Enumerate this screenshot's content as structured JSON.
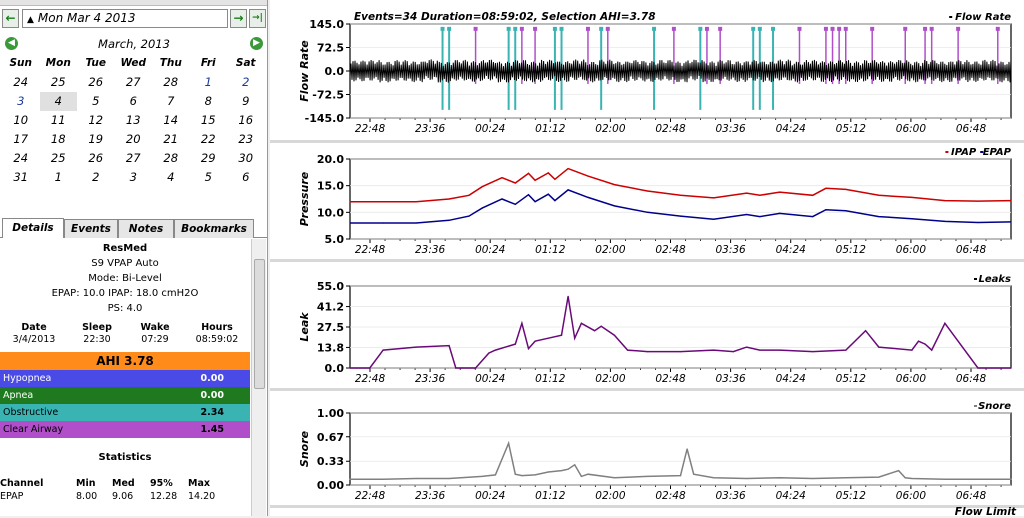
{
  "date_nav": {
    "prev": "←",
    "date": "Mon Mar 4 2013",
    "next": "→",
    "today": "→|"
  },
  "calendar": {
    "month_label": "March, 2013",
    "weekdays": [
      "Sun",
      "Mon",
      "Tue",
      "Wed",
      "Thu",
      "Fri",
      "Sat"
    ],
    "weeks": [
      [
        "24",
        "25",
        "26",
        "27",
        "28",
        "1",
        "2"
      ],
      [
        "3",
        "4",
        "5",
        "6",
        "7",
        "8",
        "9"
      ],
      [
        "10",
        "11",
        "12",
        "13",
        "14",
        "15",
        "16"
      ],
      [
        "17",
        "18",
        "19",
        "20",
        "21",
        "22",
        "23"
      ],
      [
        "24",
        "25",
        "26",
        "27",
        "28",
        "29",
        "30"
      ],
      [
        "31",
        "1",
        "2",
        "3",
        "4",
        "5",
        "6"
      ]
    ],
    "selected": "4"
  },
  "tabs": [
    "Details",
    "Events",
    "Notes",
    "Bookmarks"
  ],
  "details": {
    "brand": "ResMed",
    "model": "S9 VPAP Auto",
    "mode": "Mode: Bi-Level",
    "pressure": "EPAP: 10.0 IPAP: 18.0 cmH2O",
    "ps": "PS: 4.0",
    "sleep_headers": [
      "Date",
      "Sleep",
      "Wake",
      "Hours"
    ],
    "sleep_values": [
      "3/4/2013",
      "22:30",
      "07:29",
      "08:59:02"
    ],
    "ahi_label": "AHI 3.78",
    "events": [
      {
        "name": "Hypopnea",
        "value": "0.00",
        "color": "#4a4ae6",
        "text": "#ffffff"
      },
      {
        "name": "Apnea",
        "value": "0.00",
        "color": "#1f7a1f",
        "text": "#ffffff"
      },
      {
        "name": "Obstructive",
        "value": "2.34",
        "color": "#3ab3b3",
        "text": "#000000"
      },
      {
        "name": "Clear Airway",
        "value": "1.45",
        "color": "#b04fc9",
        "text": "#000000"
      }
    ],
    "stats_title": "Statistics",
    "stats_headers": [
      "Channel",
      "Min",
      "Med",
      "95%",
      "Max"
    ],
    "stats_rows": [
      [
        "EPAP",
        "8.00",
        "9.06",
        "12.28",
        "14.20"
      ]
    ]
  },
  "chart_data": [
    {
      "type": "line",
      "title": "Events=34 Duration=08:59:02, Selection AHI=3.78",
      "legend": [
        "Flow Rate"
      ],
      "ylabel": "Flow Rate",
      "yticks": [
        "145.0",
        "72.5",
        "0.0",
        "-72.5",
        "-145.0"
      ],
      "ylim": [
        -145,
        145
      ],
      "xticks": [
        "22:48",
        "23:36",
        "00:24",
        "01:12",
        "02:00",
        "02:48",
        "03:36",
        "04:24",
        "05:12",
        "06:00",
        "06:48"
      ],
      "series": [
        {
          "name": "Flow Rate",
          "color": "#000000",
          "values": [
            0,
            5,
            -8,
            4,
            -6,
            10,
            -10,
            6,
            -4,
            8,
            -9,
            5,
            -7,
            6,
            -5,
            9,
            -8,
            7,
            -6,
            5,
            -4,
            6,
            -7,
            8,
            -6,
            5,
            -5,
            4,
            -6,
            7,
            -8,
            6,
            -5,
            4,
            -6,
            5,
            -4,
            6,
            -7,
            5,
            -6,
            4,
            -5,
            6,
            -7,
            8
          ]
        }
      ],
      "event_flags": {
        "obstructive_color": "#3ab3b3",
        "clear_airway_color": "#b04fc9",
        "obstructive_x": [
          0.14,
          0.15,
          0.24,
          0.25,
          0.31,
          0.32,
          0.38,
          0.46,
          0.53,
          0.61,
          0.62,
          0.64
        ],
        "clear_airway_x": [
          0.19,
          0.26,
          0.28,
          0.36,
          0.39,
          0.49,
          0.54,
          0.56,
          0.68,
          0.72,
          0.73,
          0.74,
          0.75,
          0.79,
          0.84,
          0.87,
          0.88,
          0.92,
          0.98
        ]
      }
    },
    {
      "type": "line",
      "legend": [
        "IPAP",
        "EPAP"
      ],
      "ylabel": "Pressure",
      "yticks": [
        "20.0",
        "15.0",
        "10.0",
        "5.0"
      ],
      "ylim": [
        5,
        20
      ],
      "xticks": [
        "22:48",
        "23:36",
        "00:24",
        "01:12",
        "02:00",
        "02:48",
        "03:36",
        "04:24",
        "05:12",
        "06:00",
        "06:48"
      ],
      "x": [
        0,
        0.05,
        0.1,
        0.15,
        0.18,
        0.2,
        0.23,
        0.25,
        0.27,
        0.28,
        0.3,
        0.31,
        0.33,
        0.36,
        0.4,
        0.45,
        0.5,
        0.55,
        0.6,
        0.62,
        0.65,
        0.7,
        0.72,
        0.75,
        0.8,
        0.85,
        0.9,
        0.95,
        1
      ],
      "series": [
        {
          "name": "IPAP",
          "color": "#cc0000",
          "values": [
            12,
            12,
            12,
            12.5,
            13.2,
            14.8,
            16.5,
            15.5,
            17.3,
            16,
            17.4,
            16.2,
            18.2,
            16.8,
            15.2,
            14,
            13.2,
            12.7,
            13.6,
            13.2,
            13.8,
            13.2,
            14.5,
            14.3,
            13.2,
            12.8,
            12.2,
            12.1,
            12.2
          ]
        },
        {
          "name": "EPAP",
          "color": "#00008b",
          "values": [
            8,
            8,
            8,
            8.5,
            9.3,
            10.8,
            12.5,
            11.5,
            13.3,
            12,
            13.4,
            12.2,
            14.2,
            12.8,
            11.2,
            10,
            9.3,
            8.7,
            9.6,
            9.2,
            9.8,
            9.2,
            10.5,
            10.3,
            9.2,
            8.8,
            8.3,
            8.1,
            8.2
          ]
        }
      ]
    },
    {
      "type": "line",
      "legend": [
        "Leaks"
      ],
      "ylabel": "Leak",
      "yticks": [
        "55.0",
        "41.2",
        "27.5",
        "13.8",
        "0.0"
      ],
      "ylim": [
        0,
        55
      ],
      "xticks": [
        "22:48",
        "23:36",
        "00:24",
        "01:12",
        "02:00",
        "02:48",
        "03:36",
        "04:24",
        "05:12",
        "06:00",
        "06:48"
      ],
      "x": [
        0,
        0.01,
        0.03,
        0.05,
        0.1,
        0.15,
        0.16,
        0.17,
        0.19,
        0.21,
        0.22,
        0.25,
        0.26,
        0.27,
        0.28,
        0.3,
        0.32,
        0.33,
        0.34,
        0.35,
        0.37,
        0.38,
        0.4,
        0.42,
        0.45,
        0.5,
        0.55,
        0.58,
        0.6,
        0.62,
        0.64,
        0.65,
        0.7,
        0.75,
        0.78,
        0.8,
        0.85,
        0.86,
        0.87,
        0.88,
        0.9,
        0.95,
        1
      ],
      "series": [
        {
          "name": "Leak",
          "color": "#6a0a7a",
          "values": [
            0,
            0,
            0,
            12,
            14,
            15,
            0,
            0,
            0,
            10,
            12,
            16,
            30,
            13,
            18,
            20,
            22,
            48,
            20,
            30,
            25,
            28,
            22,
            12,
            11,
            11,
            12,
            11,
            14,
            12,
            12,
            12,
            11,
            12,
            25,
            14,
            12,
            18,
            16,
            12,
            30,
            0,
            0
          ]
        }
      ]
    },
    {
      "type": "line",
      "legend": [
        "Snore"
      ],
      "ylabel": "Snore",
      "yticks": [
        "1.00",
        "0.67",
        "0.33",
        "0.00"
      ],
      "ylim": [
        0,
        1
      ],
      "xticks": [
        "22:48",
        "23:36",
        "00:24",
        "01:12",
        "02:00",
        "02:48",
        "03:36",
        "04:24",
        "05:12",
        "06:00",
        "06:48"
      ],
      "x": [
        0,
        0.05,
        0.1,
        0.15,
        0.2,
        0.22,
        0.24,
        0.25,
        0.26,
        0.28,
        0.3,
        0.32,
        0.33,
        0.34,
        0.35,
        0.36,
        0.4,
        0.45,
        0.5,
        0.51,
        0.52,
        0.55,
        0.6,
        0.65,
        0.7,
        0.75,
        0.8,
        0.83,
        0.84,
        0.85,
        0.9,
        0.95,
        1
      ],
      "series": [
        {
          "name": "Snore",
          "color": "#808080",
          "values": [
            0.08,
            0.08,
            0.09,
            0.09,
            0.12,
            0.14,
            0.58,
            0.15,
            0.13,
            0.14,
            0.18,
            0.2,
            0.22,
            0.28,
            0.12,
            0.15,
            0.1,
            0.12,
            0.13,
            0.5,
            0.15,
            0.1,
            0.09,
            0.1,
            0.09,
            0.1,
            0.11,
            0.2,
            0.1,
            0.09,
            0.08,
            0.08,
            0.08
          ]
        }
      ]
    }
  ],
  "bottom_label": "Flow Limit"
}
